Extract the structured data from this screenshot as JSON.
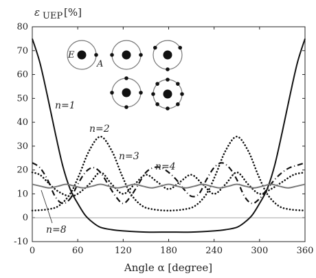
{
  "chart_data": {
    "type": "line",
    "ylabel": "ε",
    "ylabel_sub": "UEP",
    "ylabel_unit": "[%]",
    "xlabel": "Angle α [degree]",
    "xlim": [
      0,
      360
    ],
    "ylim": [
      -10,
      80
    ],
    "x_ticks": [
      "0",
      "60",
      "120",
      "180",
      "240",
      "300",
      "360"
    ],
    "y_ticks": [
      "-10",
      "0",
      "10",
      "20",
      "30",
      "40",
      "50",
      "60",
      "70",
      "80"
    ],
    "reference_line_y": 0,
    "series": [
      {
        "name": "n=1",
        "style": "solid",
        "points": [
          [
            0,
            75
          ],
          [
            10,
            65
          ],
          [
            20,
            51
          ],
          [
            30,
            36
          ],
          [
            40,
            22
          ],
          [
            50,
            12
          ],
          [
            60,
            6
          ],
          [
            70,
            1
          ],
          [
            80,
            -2
          ],
          [
            90,
            -4
          ],
          [
            105,
            -5
          ],
          [
            120,
            -5.5
          ],
          [
            150,
            -6
          ],
          [
            180,
            -6
          ],
          [
            210,
            -6
          ],
          [
            240,
            -5.5
          ],
          [
            255,
            -5
          ],
          [
            270,
            -4
          ],
          [
            280,
            -2
          ],
          [
            290,
            1
          ],
          [
            300,
            6
          ],
          [
            310,
            12
          ],
          [
            320,
            22
          ],
          [
            330,
            36
          ],
          [
            340,
            51
          ],
          [
            350,
            65
          ],
          [
            360,
            75
          ]
        ]
      },
      {
        "name": "n=2",
        "style": "dotted",
        "points": [
          [
            0,
            3
          ],
          [
            20,
            3.5
          ],
          [
            35,
            5
          ],
          [
            50,
            10
          ],
          [
            62,
            18
          ],
          [
            75,
            28
          ],
          [
            90,
            34
          ],
          [
            105,
            28
          ],
          [
            118,
            18
          ],
          [
            130,
            10
          ],
          [
            145,
            5
          ],
          [
            160,
            3.5
          ],
          [
            180,
            3
          ],
          [
            200,
            3.5
          ],
          [
            215,
            5
          ],
          [
            230,
            10
          ],
          [
            242,
            18
          ],
          [
            255,
            28
          ],
          [
            270,
            34
          ],
          [
            285,
            28
          ],
          [
            298,
            18
          ],
          [
            310,
            10
          ],
          [
            325,
            5
          ],
          [
            340,
            3.5
          ],
          [
            360,
            3
          ]
        ]
      },
      {
        "name": "n=3",
        "style": "dashdot",
        "points": [
          [
            0,
            23
          ],
          [
            10,
            21
          ],
          [
            20,
            16
          ],
          [
            30,
            9
          ],
          [
            40,
            6
          ],
          [
            50,
            8
          ],
          [
            60,
            14
          ],
          [
            70,
            19
          ],
          [
            80,
            21
          ],
          [
            90,
            19
          ],
          [
            100,
            14
          ],
          [
            110,
            9
          ],
          [
            120,
            6
          ],
          [
            130,
            9
          ],
          [
            140,
            14
          ],
          [
            150,
            19
          ],
          [
            160,
            21
          ],
          [
            170,
            21
          ],
          [
            180,
            19
          ],
          [
            190,
            16
          ],
          [
            200,
            12
          ],
          [
            210,
            9
          ],
          [
            220,
            10
          ],
          [
            230,
            16
          ],
          [
            240,
            21
          ],
          [
            250,
            23
          ],
          [
            260,
            21
          ],
          [
            270,
            16
          ],
          [
            280,
            9
          ],
          [
            290,
            6
          ],
          [
            300,
            8
          ],
          [
            310,
            12
          ],
          [
            320,
            16
          ],
          [
            330,
            19
          ],
          [
            340,
            21
          ],
          [
            350,
            22
          ],
          [
            360,
            23
          ]
        ]
      },
      {
        "name": "n=4",
        "style": "dotted",
        "points": [
          [
            0,
            19
          ],
          [
            10,
            18
          ],
          [
            20,
            15
          ],
          [
            30,
            12
          ],
          [
            40,
            10
          ],
          [
            50,
            9
          ],
          [
            60,
            10
          ],
          [
            75,
            14
          ],
          [
            90,
            19
          ],
          [
            105,
            14
          ],
          [
            120,
            10
          ],
          [
            135,
            14
          ],
          [
            150,
            18
          ],
          [
            165,
            15
          ],
          [
            180,
            12
          ],
          [
            195,
            15
          ],
          [
            210,
            18
          ],
          [
            225,
            14
          ],
          [
            240,
            10
          ],
          [
            255,
            14
          ],
          [
            270,
            19
          ],
          [
            285,
            14
          ],
          [
            300,
            10
          ],
          [
            315,
            12
          ],
          [
            330,
            15
          ],
          [
            345,
            18
          ],
          [
            360,
            19
          ]
        ]
      },
      {
        "name": "n=8",
        "style": "solid-gray",
        "points": [
          [
            0,
            14
          ],
          [
            11.25,
            13.2
          ],
          [
            22.5,
            12.5
          ],
          [
            33.75,
            13.2
          ],
          [
            45,
            14
          ],
          [
            56.25,
            13.2
          ],
          [
            67.5,
            12.5
          ],
          [
            78.75,
            13.2
          ],
          [
            90,
            14
          ],
          [
            101.25,
            13.2
          ],
          [
            112.5,
            12.5
          ],
          [
            123.75,
            13.2
          ],
          [
            135,
            14
          ],
          [
            146.25,
            13.2
          ],
          [
            157.5,
            12.5
          ],
          [
            168.75,
            13.2
          ],
          [
            180,
            14
          ],
          [
            191.25,
            13.2
          ],
          [
            202.5,
            12.5
          ],
          [
            213.75,
            13.2
          ],
          [
            225,
            14
          ],
          [
            236.25,
            13.2
          ],
          [
            247.5,
            12.5
          ],
          [
            258.75,
            13.2
          ],
          [
            270,
            14
          ],
          [
            281.25,
            13.2
          ],
          [
            292.5,
            12.5
          ],
          [
            303.75,
            13.2
          ],
          [
            315,
            14
          ],
          [
            326.25,
            13.2
          ],
          [
            337.5,
            12.5
          ],
          [
            348.75,
            13.2
          ],
          [
            360,
            14
          ]
        ]
      }
    ],
    "annotations": [
      "n=1",
      "n=2",
      "n=3",
      "n=4",
      "n=8"
    ]
  },
  "inset": {
    "labels": {
      "E": "E",
      "A": "A"
    },
    "configs": [
      {
        "id": "n1",
        "electrodes": 1
      },
      {
        "id": "n2",
        "electrodes": 2
      },
      {
        "id": "n3",
        "electrodes": 3
      },
      {
        "id": "n4",
        "electrodes": 4
      },
      {
        "id": "n8",
        "electrodes": 8
      }
    ]
  }
}
